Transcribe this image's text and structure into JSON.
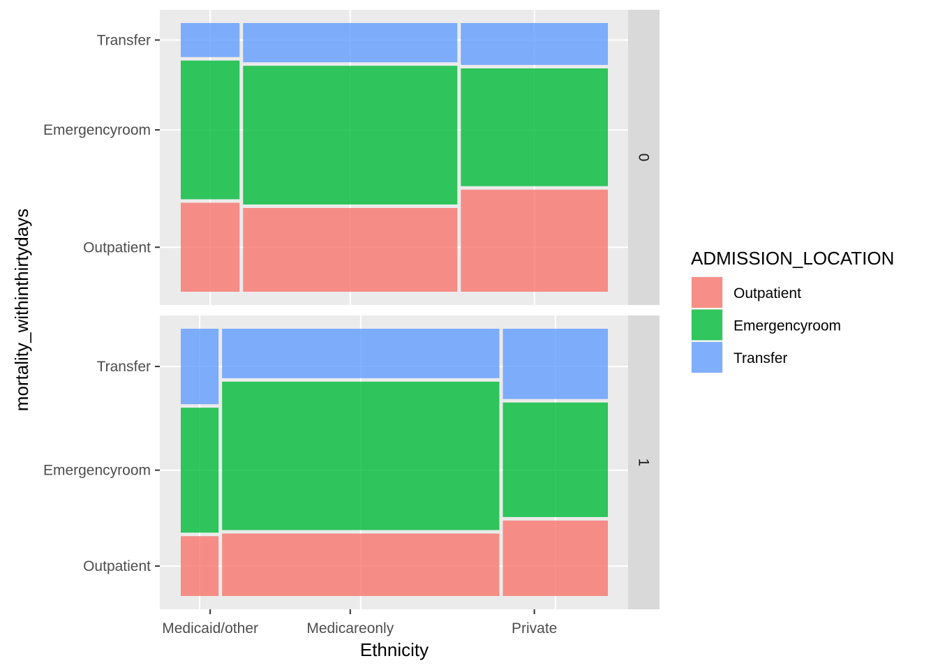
{
  "chart_data": {
    "type": "mosaic",
    "xlabel": "Ethnicity",
    "ylabel": "mortality_withinthirtydays",
    "fill_legend_title": "ADMISSION_LOCATION",
    "x_categories": [
      "Medicaid/other",
      "Medicareonly",
      "Private"
    ],
    "y_categories": [
      "Outpatient",
      "Emergencyroom",
      "Transfer"
    ],
    "colors": {
      "Outpatient": "#F8766D",
      "Emergencyroom": "#00BA38",
      "Transfer": "#619CFF"
    },
    "panel_background": "#EBEBEB",
    "strip_background": "#D9D9D9",
    "grid": true,
    "legend_position": "right",
    "facets": [
      {
        "label": "0",
        "x_proportions": [
          0.14,
          0.51,
          0.35
        ],
        "columns": [
          {
            "category": "Medicaid/other",
            "proportions": {
              "Outpatient": 0.34,
              "Emergencyroom": 0.53,
              "Transfer": 0.13
            }
          },
          {
            "category": "Medicareonly",
            "proportions": {
              "Outpatient": 0.32,
              "Emergencyroom": 0.53,
              "Transfer": 0.15
            }
          },
          {
            "category": "Private",
            "proportions": {
              "Outpatient": 0.39,
              "Emergencyroom": 0.45,
              "Transfer": 0.16
            }
          }
        ]
      },
      {
        "label": "1",
        "x_proportions": [
          0.09,
          0.66,
          0.25
        ],
        "columns": [
          {
            "category": "Medicaid/other",
            "proportions": {
              "Outpatient": 0.23,
              "Emergencyroom": 0.48,
              "Transfer": 0.29
            }
          },
          {
            "category": "Medicareonly",
            "proportions": {
              "Outpatient": 0.24,
              "Emergencyroom": 0.57,
              "Transfer": 0.19
            }
          },
          {
            "category": "Private",
            "proportions": {
              "Outpatient": 0.29,
              "Emergencyroom": 0.44,
              "Transfer": 0.27
            }
          }
        ]
      }
    ]
  }
}
